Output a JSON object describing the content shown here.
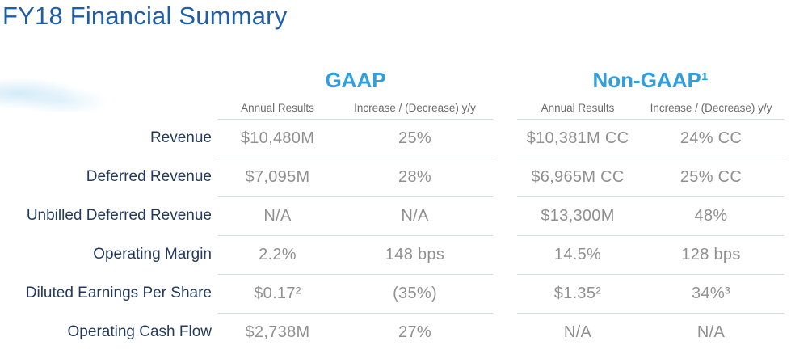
{
  "title": "FY18 Financial Summary",
  "colors": {
    "title_blue": "#1d5fa6",
    "group_header_blue": "#2f9fe0",
    "row_label_navy": "#243a5d",
    "value_gray": "#909090",
    "subheader_gray": "#6b6b6b",
    "divider_light_blue": "#cbdde9",
    "cloud_decor": "#bbe0f4"
  },
  "decor": {
    "cloud": "cloud-watermark"
  },
  "table": {
    "groups": [
      {
        "name": "GAAP",
        "sub_annual": "Annual Results",
        "sub_change": "Increase / (Decrease) y/y"
      },
      {
        "name": "Non-GAAP¹",
        "sub_annual": "Annual Results",
        "sub_change": "Increase / (Decrease) y/y"
      }
    ],
    "rows": [
      {
        "label": "Revenue",
        "gaap_annual": "$10,480M",
        "gaap_change": "25%",
        "nongaap_annual": "$10,381M CC",
        "nongaap_change": "24% CC"
      },
      {
        "label": "Deferred Revenue",
        "gaap_annual": "$7,095M",
        "gaap_change": "28%",
        "nongaap_annual": "$6,965M CC",
        "nongaap_change": "25% CC"
      },
      {
        "label": "Unbilled Deferred Revenue",
        "gaap_annual": "N/A",
        "gaap_change": "N/A",
        "nongaap_annual": "$13,300M",
        "nongaap_change": "48%"
      },
      {
        "label": "Operating Margin",
        "gaap_annual": "2.2%",
        "gaap_change": "148 bps",
        "nongaap_annual": "14.5%",
        "nongaap_change": "128 bps"
      },
      {
        "label": "Diluted Earnings Per Share",
        "gaap_annual": "$0.17²",
        "gaap_change": "(35%)",
        "nongaap_annual": "$1.35²",
        "nongaap_change": "34%³"
      },
      {
        "label": "Operating Cash Flow",
        "gaap_annual": "$2,738M",
        "gaap_change": "27%",
        "nongaap_annual": "N/A",
        "nongaap_change": "N/A"
      }
    ]
  }
}
